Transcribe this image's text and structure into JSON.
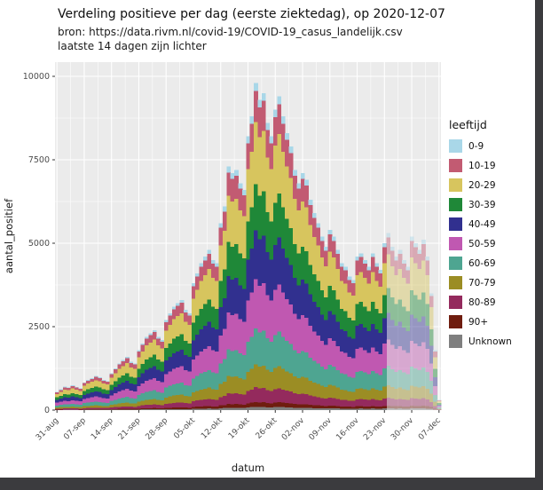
{
  "window": {
    "frame_color": "#3B3B3E",
    "background": "#FFFFFF"
  },
  "header": {
    "title": "Verdeling positieve per dag (eerste ziektedag), op 2020-12-07",
    "subtitle_line1": "bron: https://data.rivm.nl/covid-19/COVID-19_casus_landelijk.csv",
    "subtitle_line2": "laatste 14 dagen zijn lichter"
  },
  "chart_data": {
    "type": "bar",
    "stacked": true,
    "title": "Verdeling positieve per dag (eerste ziektedag), op 2020-12-07",
    "xlabel": "datum",
    "ylabel": "aantal_positief",
    "ylim": [
      0,
      10000
    ],
    "y_ticks": [
      0,
      2500,
      5000,
      7500,
      10000
    ],
    "x_start_date": "2020-08-31",
    "x_tick_labels": [
      "31-aug",
      "07-sep",
      "14-sep",
      "21-sep",
      "28-sep",
      "05-okt",
      "12-okt",
      "19-okt",
      "26-okt",
      "02-nov",
      "09-nov",
      "16-nov",
      "23-nov",
      "30-nov",
      "07-dec"
    ],
    "grid": true,
    "panel_bg": "#EBEBEB",
    "grid_color": "#FFFFFF",
    "legend_title": "leeftijd",
    "legend_position": "right",
    "light_last_n_days": 14,
    "light_opacity": 0.45,
    "totals": [
      550,
      620,
      700,
      680,
      740,
      690,
      650,
      830,
      900,
      960,
      1020,
      980,
      900,
      870,
      1100,
      1250,
      1400,
      1500,
      1600,
      1450,
      1400,
      1800,
      2000,
      2200,
      2300,
      2400,
      2200,
      2100,
      2700,
      2900,
      3100,
      3200,
      3300,
      3000,
      2900,
      3800,
      4100,
      4400,
      4600,
      4800,
      4500,
      4400,
      5600,
      6100,
      7300,
      7100,
      7200,
      6800,
      6600,
      8200,
      8800,
      9800,
      9300,
      9500,
      8600,
      8200,
      9000,
      9400,
      8800,
      8300,
      7900,
      7200,
      6800,
      7100,
      6900,
      6300,
      5900,
      5600,
      5200,
      4900,
      5400,
      5200,
      4800,
      4400,
      4300,
      4000,
      3900,
      4600,
      4700,
      4500,
      4300,
      4700,
      4400,
      4200,
      5000,
      5300,
      4900,
      4600,
      4800,
      4500,
      4300,
      5200,
      5000,
      4800,
      5100,
      4600,
      3500,
      1800,
      300
    ],
    "series": [
      {
        "name": "0-9",
        "color": "#A9D7E8",
        "share": 0.025
      },
      {
        "name": "10-19",
        "color": "#C25B72",
        "share": 0.095
      },
      {
        "name": "20-29",
        "color": "#D7C55E",
        "share": 0.19
      },
      {
        "name": "30-39",
        "color": "#1F8838",
        "share": 0.14
      },
      {
        "name": "40-49",
        "color": "#31308F",
        "share": 0.15
      },
      {
        "name": "50-59",
        "color": "#C058B1",
        "share": 0.15
      },
      {
        "name": "60-69",
        "color": "#4EA591",
        "share": 0.11
      },
      {
        "name": "70-79",
        "color": "#9B8D24",
        "share": 0.07
      },
      {
        "name": "80-89",
        "color": "#942A5D",
        "share": 0.045
      },
      {
        "name": "90+",
        "color": "#6F1D0F",
        "share": 0.015
      },
      {
        "name": "Unknown",
        "color": "#7F7F7F",
        "share": 0.01
      }
    ]
  }
}
